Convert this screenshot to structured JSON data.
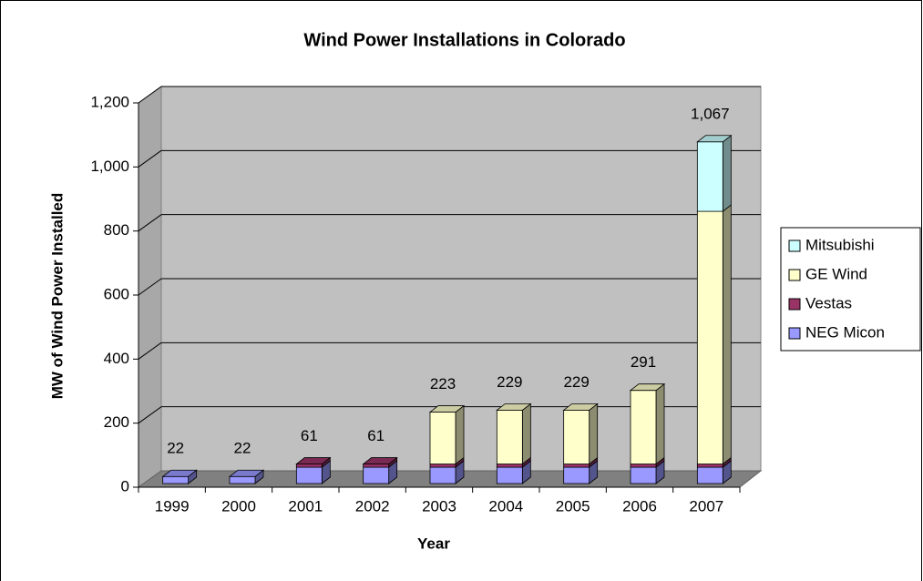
{
  "chart_data": {
    "type": "bar3d_stacked",
    "title": "Wind Power Installations in Colorado",
    "x_label": "Year",
    "y_label": "MW of Wind Power Installed",
    "categories": [
      "1999",
      "2000",
      "2001",
      "2002",
      "2003",
      "2004",
      "2005",
      "2006",
      "2007"
    ],
    "series": [
      {
        "name": "NEG Micon",
        "color": "#9999ff",
        "values": [
          22,
          22,
          51,
          51,
          51,
          51,
          51,
          51,
          51
        ]
      },
      {
        "name": "Vestas",
        "color": "#993366",
        "values": [
          0,
          0,
          10,
          10,
          10,
          10,
          10,
          10,
          10
        ]
      },
      {
        "name": "GE Wind",
        "color": "#ffffcc",
        "values": [
          0,
          0,
          0,
          0,
          162,
          168,
          168,
          230,
          789
        ]
      },
      {
        "name": "Mitsubishi",
        "color": "#ccffff",
        "values": [
          0,
          0,
          0,
          0,
          0,
          0,
          0,
          0,
          217
        ]
      }
    ],
    "totals": [
      22,
      22,
      61,
      61,
      223,
      229,
      229,
      291,
      1067
    ],
    "total_labels": [
      "22",
      "22",
      "61",
      "61",
      "223",
      "229",
      "229",
      "291",
      "1,067"
    ],
    "ylim": [
      0,
      1200
    ],
    "yticks": [
      0,
      200,
      400,
      600,
      800,
      {
        "value": 1000,
        "label": "1,000"
      },
      {
        "value": 1200,
        "label": "1,200"
      }
    ],
    "grid": true,
    "legend": "right"
  }
}
